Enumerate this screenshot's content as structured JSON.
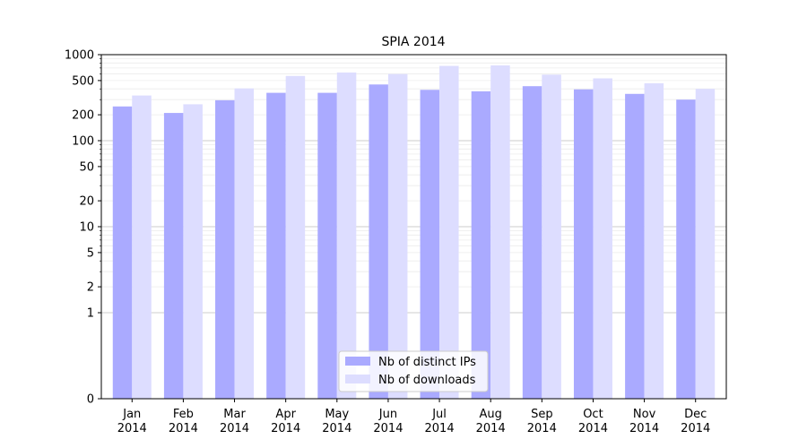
{
  "chart_data": {
    "type": "bar",
    "title": "SPIA 2014",
    "xlabel": "",
    "ylabel": "",
    "y_scale": "symlog",
    "ylim": [
      0,
      1000
    ],
    "y_ticks": [
      {
        "value": 0,
        "label": "0"
      },
      {
        "value": 1,
        "label": "1"
      },
      {
        "value": 2,
        "label": "2"
      },
      {
        "value": 5,
        "label": "5"
      },
      {
        "value": 10,
        "label": "10"
      },
      {
        "value": 20,
        "label": "20"
      },
      {
        "value": 50,
        "label": "50"
      },
      {
        "value": 100,
        "label": "100"
      },
      {
        "value": 200,
        "label": "200"
      },
      {
        "value": 500,
        "label": "500"
      },
      {
        "value": 1000,
        "label": "1000"
      }
    ],
    "grid": true,
    "legend_position": "bottom-center",
    "categories": [
      {
        "month": "Jan",
        "year": "2014"
      },
      {
        "month": "Feb",
        "year": "2014"
      },
      {
        "month": "Mar",
        "year": "2014"
      },
      {
        "month": "Apr",
        "year": "2014"
      },
      {
        "month": "May",
        "year": "2014"
      },
      {
        "month": "Jun",
        "year": "2014"
      },
      {
        "month": "Jul",
        "year": "2014"
      },
      {
        "month": "Aug",
        "year": "2014"
      },
      {
        "month": "Sep",
        "year": "2014"
      },
      {
        "month": "Oct",
        "year": "2014"
      },
      {
        "month": "Nov",
        "year": "2014"
      },
      {
        "month": "Dec",
        "year": "2014"
      }
    ],
    "series": [
      {
        "name": "Nb of distinct IPs",
        "color": "#aaaaff",
        "values": [
          250,
          210,
          295,
          360,
          360,
          450,
          390,
          375,
          430,
          395,
          350,
          300
        ]
      },
      {
        "name": "Nb of downloads",
        "color": "#ddddff",
        "values": [
          335,
          265,
          405,
          565,
          620,
          595,
          740,
          750,
          585,
          530,
          465,
          400
        ]
      }
    ]
  }
}
